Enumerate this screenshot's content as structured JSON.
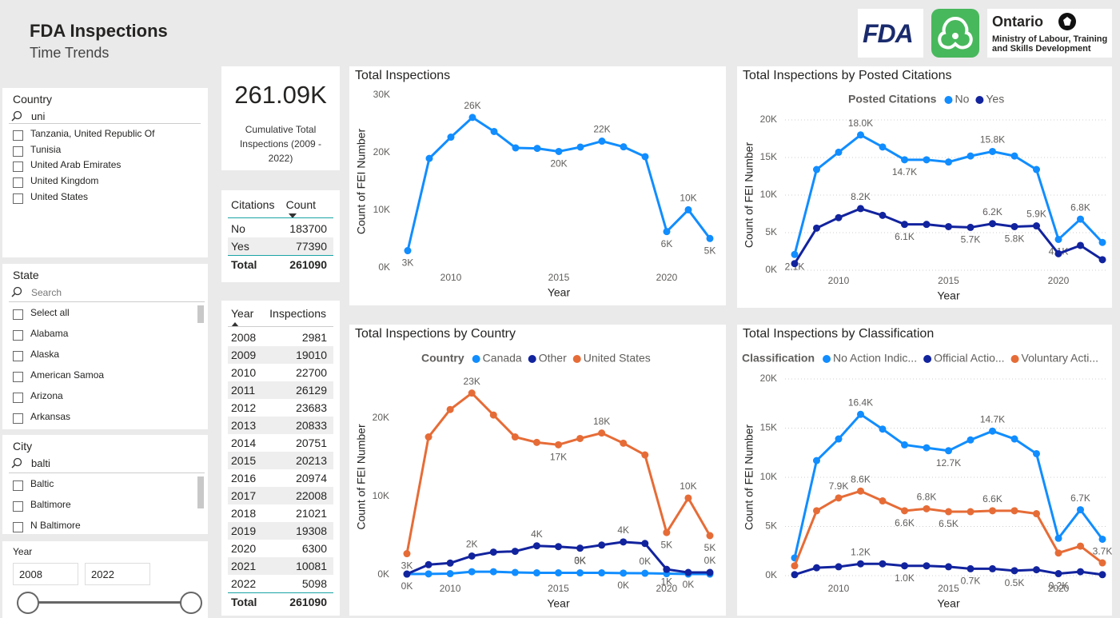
{
  "header": {
    "title": "FDA Inspections",
    "subtitle": "Time Trends"
  },
  "logos": {
    "fda": "FDA",
    "ontario": "Ontario",
    "ministry": "Ministry of Labour, Training and Skills Development"
  },
  "slicers": {
    "country": {
      "title": "Country",
      "search": "uni",
      "items": [
        "Tanzania, United Republic Of",
        "Tunisia",
        "United Arab Emirates",
        "United Kingdom",
        "United States"
      ]
    },
    "state": {
      "title": "State",
      "search_placeholder": "Search",
      "items": [
        "Select all",
        "Alabama",
        "Alaska",
        "American Samoa",
        "Arizona",
        "Arkansas"
      ]
    },
    "city": {
      "title": "City",
      "search": "balti",
      "items": [
        "Baltic",
        "Baltimore",
        "N Baltimore"
      ]
    },
    "year": {
      "title": "Year",
      "from": "2008",
      "to": "2022"
    }
  },
  "card": {
    "value": "261.09K",
    "caption": "Cumulative Total Inspections (2009 - 2022)"
  },
  "citations_table": {
    "columns": [
      "Citations",
      "Count"
    ],
    "rows": [
      [
        "No",
        183700
      ],
      [
        "Yes",
        77390
      ]
    ],
    "total": [
      "Total",
      261090
    ]
  },
  "year_table": {
    "columns": [
      "Year",
      "Inspections"
    ],
    "rows": [
      [
        2008,
        2981
      ],
      [
        2009,
        19010
      ],
      [
        2010,
        22700
      ],
      [
        2011,
        26129
      ],
      [
        2012,
        23683
      ],
      [
        2013,
        20833
      ],
      [
        2014,
        20751
      ],
      [
        2015,
        20213
      ],
      [
        2016,
        20974
      ],
      [
        2017,
        22008
      ],
      [
        2018,
        21021
      ],
      [
        2019,
        19308
      ],
      [
        2020,
        6300
      ],
      [
        2021,
        10081
      ],
      [
        2022,
        5098
      ]
    ],
    "total": [
      "Total",
      261090
    ]
  },
  "chart_data": [
    {
      "type": "line",
      "title": "Total Inspections",
      "x_label": "Year",
      "y_label": "Count of FEI Number",
      "x": [
        2008,
        2009,
        2010,
        2011,
        2012,
        2013,
        2014,
        2015,
        2016,
        2017,
        2018,
        2019,
        2020,
        2021,
        2022
      ],
      "values": [
        2981,
        19010,
        22700,
        26129,
        23683,
        20833,
        20751,
        20213,
        20974,
        22008,
        21021,
        19308,
        6300,
        10081,
        5098
      ],
      "value_labels": [
        "3K",
        null,
        null,
        "26K",
        null,
        null,
        null,
        "20K",
        null,
        "22K",
        null,
        null,
        "6K",
        "10K",
        "5K"
      ],
      "color": "#118dff",
      "xlim": [
        2008,
        2022
      ],
      "ylim": [
        0,
        30000
      ],
      "yticks": [
        {
          "value": 0,
          "label": "0K"
        },
        {
          "value": 10000,
          "label": "10K"
        },
        {
          "value": 20000,
          "label": "20K"
        },
        {
          "value": 30000,
          "label": "30K"
        }
      ],
      "xticks": [
        2010,
        2015,
        2020
      ],
      "grid": false
    },
    {
      "type": "line",
      "title": "Total Inspections by Posted Citations",
      "x_label": "Year",
      "y_label": "Count of FEI Number",
      "legend_title": "Posted Citations",
      "x": [
        2008,
        2009,
        2010,
        2011,
        2012,
        2013,
        2014,
        2015,
        2016,
        2017,
        2018,
        2019,
        2020,
        2021,
        2022
      ],
      "series": [
        {
          "name": "No",
          "color": "#118dff",
          "values": [
            2100,
            13400,
            15700,
            18000,
            16400,
            14700,
            14700,
            14400,
            15200,
            15800,
            15200,
            13400,
            4100,
            6800,
            3700
          ],
          "value_labels": [
            "2.1K",
            null,
            null,
            "18.0K",
            null,
            "14.7K",
            null,
            null,
            null,
            "15.8K",
            null,
            null,
            "4.1K",
            "6.8K",
            null
          ]
        },
        {
          "name": "Yes",
          "color": "#12239e",
          "values": [
            881,
            5600,
            7000,
            8200,
            7300,
            6100,
            6100,
            5800,
            5700,
            6200,
            5800,
            5900,
            2200,
            3300,
            1400
          ],
          "value_labels": [
            null,
            null,
            null,
            "8.2K",
            null,
            "6.1K",
            null,
            null,
            "5.7K",
            "6.2K",
            "5.8K",
            "5.9K",
            null,
            null,
            null
          ]
        }
      ],
      "xlim": [
        2008,
        2022
      ],
      "ylim": [
        0,
        20000
      ],
      "yticks": [
        {
          "value": 0,
          "label": "0K"
        },
        {
          "value": 5000,
          "label": "5K"
        },
        {
          "value": 10000,
          "label": "10K"
        },
        {
          "value": 15000,
          "label": "15K"
        },
        {
          "value": 20000,
          "label": "20K"
        }
      ],
      "xticks": [
        2010,
        2015,
        2020
      ],
      "grid": true
    },
    {
      "type": "line",
      "title": "Total Inspections by Country",
      "x_label": "Year",
      "y_label": "Count of FEI Number",
      "legend_title": "Country",
      "x": [
        2008,
        2009,
        2010,
        2011,
        2012,
        2013,
        2014,
        2015,
        2016,
        2017,
        2018,
        2019,
        2020,
        2021,
        2022
      ],
      "series": [
        {
          "name": "Canada",
          "color": "#118dff",
          "values": [
            100,
            120,
            150,
            400,
            400,
            300,
            250,
            250,
            250,
            250,
            220,
            200,
            150,
            100,
            100
          ],
          "value_labels": [
            null,
            null,
            null,
            null,
            null,
            null,
            null,
            null,
            "0K",
            null,
            "0K",
            "0K",
            null,
            null,
            null
          ]
        },
        {
          "name": "Other",
          "color": "#12239e",
          "values": [
            100,
            1300,
            1500,
            2400,
            2900,
            3000,
            3700,
            3600,
            3400,
            3800,
            4200,
            4000,
            700,
            300,
            300
          ],
          "value_labels": [
            "0K",
            null,
            null,
            "2K",
            null,
            null,
            "4K",
            null,
            "3K",
            null,
            "4K",
            null,
            "1K",
            "0K",
            "0K"
          ]
        },
        {
          "name": "United States",
          "color": "#e66c37",
          "values": [
            2700,
            17600,
            21100,
            23200,
            20400,
            17600,
            16900,
            16600,
            17400,
            18100,
            16800,
            15300,
            5400,
            9800,
            5000
          ],
          "value_labels": [
            "3K",
            null,
            null,
            "23K",
            null,
            null,
            null,
            "17K",
            null,
            "18K",
            null,
            null,
            "5K",
            "10K",
            "5K"
          ]
        }
      ],
      "xlim": [
        2008,
        2022
      ],
      "ylim": [
        0,
        25000
      ],
      "yticks": [
        {
          "value": 0,
          "label": "0K"
        },
        {
          "value": 10000,
          "label": "10K"
        },
        {
          "value": 20000,
          "label": "20K"
        }
      ],
      "xticks": [
        2010,
        2015,
        2020
      ],
      "grid": false
    },
    {
      "type": "line",
      "title": "Total Inspections by Classification",
      "x_label": "Year",
      "y_label": "Count of FEI Number",
      "legend_title": "Classification",
      "x": [
        2008,
        2009,
        2010,
        2011,
        2012,
        2013,
        2014,
        2015,
        2016,
        2017,
        2018,
        2019,
        2020,
        2021,
        2022
      ],
      "series": [
        {
          "name": "No Action Indic...",
          "color": "#118dff",
          "values": [
            1800,
            11700,
            13900,
            16400,
            14900,
            13300,
            13000,
            12700,
            13800,
            14700,
            13900,
            12400,
            3800,
            6700,
            3700
          ],
          "value_labels": [
            null,
            null,
            null,
            "16.4K",
            null,
            null,
            null,
            "12.7K",
            null,
            "14.7K",
            null,
            null,
            null,
            "6.7K",
            "3.7K"
          ]
        },
        {
          "name": "Official Actio...",
          "color": "#12239e",
          "values": [
            100,
            800,
            900,
            1200,
            1200,
            1000,
            1000,
            900,
            700,
            700,
            500,
            600,
            200,
            400,
            100
          ],
          "value_labels": [
            null,
            null,
            null,
            "1.2K",
            null,
            "1.0K",
            null,
            null,
            "0.7K",
            null,
            "0.5K",
            null,
            "0.2K",
            null,
            null
          ]
        },
        {
          "name": "Voluntary Acti...",
          "color": "#e66c37",
          "values": [
            1000,
            6600,
            7900,
            8600,
            7600,
            6600,
            6800,
            6500,
            6500,
            6600,
            6600,
            6300,
            2300,
            3000,
            1300
          ],
          "value_labels": [
            null,
            null,
            "7.9K",
            "8.6K",
            null,
            "6.6K",
            "6.8K",
            "6.5K",
            null,
            "6.6K",
            null,
            null,
            null,
            null,
            null
          ]
        }
      ],
      "xlim": [
        2008,
        2022
      ],
      "ylim": [
        0,
        20000
      ],
      "yticks": [
        {
          "value": 0,
          "label": "0K"
        },
        {
          "value": 5000,
          "label": "5K"
        },
        {
          "value": 10000,
          "label": "10K"
        },
        {
          "value": 15000,
          "label": "15K"
        },
        {
          "value": 20000,
          "label": "20K"
        }
      ],
      "xticks": [
        2010,
        2015,
        2020
      ],
      "grid": true
    }
  ]
}
